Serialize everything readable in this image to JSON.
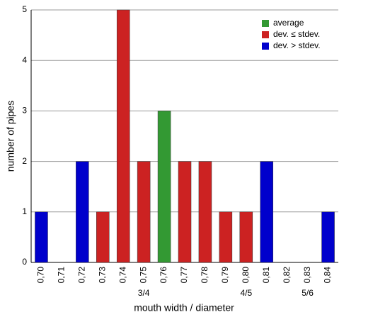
{
  "chart_data": {
    "type": "bar",
    "x_label": "mouth width / diameter",
    "y_label": "number of pipes",
    "categories": [
      "0,70",
      "0,71",
      "0,72",
      "0,73",
      "0,74",
      "0,75",
      "0,76",
      "0,77",
      "0,78",
      "0,79",
      "0,80",
      "0,81",
      "0,82",
      "0,83",
      "0,84"
    ],
    "x_sublabels": [
      null,
      null,
      null,
      null,
      null,
      "3/4",
      null,
      null,
      null,
      null,
      "4/5",
      null,
      null,
      "5/6",
      null
    ],
    "series": [
      {
        "name": "average",
        "color": "#339933",
        "values": [
          null,
          null,
          null,
          null,
          null,
          null,
          3,
          null,
          null,
          null,
          null,
          null,
          null,
          null,
          null
        ]
      },
      {
        "name": "dev. ≤ stdev.",
        "color": "#cc2222",
        "values": [
          null,
          null,
          null,
          1,
          5,
          2,
          null,
          2,
          2,
          1,
          1,
          null,
          null,
          null,
          null
        ]
      },
      {
        "name": "dev. > stdev.",
        "color": "#0000cc",
        "values": [
          1,
          null,
          2,
          null,
          null,
          null,
          null,
          null,
          null,
          null,
          null,
          2,
          null,
          null,
          1
        ]
      }
    ],
    "ylim": [
      0,
      5
    ],
    "yticks": [
      0,
      1,
      2,
      3,
      4,
      5
    ],
    "grid": true,
    "legend": "top-right"
  }
}
